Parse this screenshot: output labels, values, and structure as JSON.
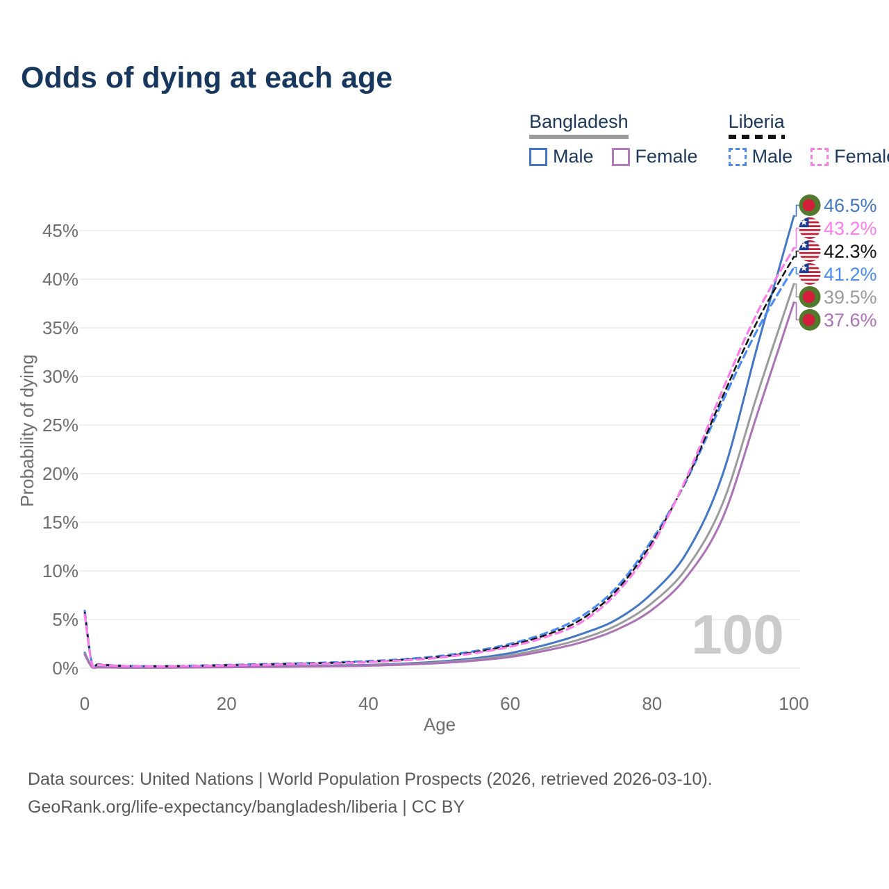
{
  "page": {
    "title": "Odds of dying at each age",
    "watermark": "100",
    "footer": {
      "line1": "Data sources: United Nations | World Population Prospects (2026, retrieved 2026-03-10).",
      "line2": "GeoRank.org/life-expectancy/bangladesh/liberia | CC BY"
    }
  },
  "legend": {
    "groups": [
      {
        "name": "Bangladesh",
        "underline_color": "#9b9b9b",
        "underline_style": "solid",
        "items": [
          {
            "label": "Male",
            "color": "#4377c6",
            "dashed": false
          },
          {
            "label": "Female",
            "color": "#b279bd",
            "dashed": false
          }
        ]
      },
      {
        "name": "Liberia",
        "underline_color": "#141414",
        "underline_style": "dashed",
        "items": [
          {
            "label": "Male",
            "color": "#4a8cf2",
            "dashed": true
          },
          {
            "label": "Female",
            "color": "#fb7de9",
            "dashed": true
          }
        ]
      }
    ]
  },
  "chart_data": {
    "type": "line",
    "title": "Odds of dying at each age",
    "xlabel": "Age",
    "ylabel": "Probability of dying",
    "xlim": [
      0,
      100
    ],
    "ylim": [
      0,
      47
    ],
    "x_ticks": [
      0,
      20,
      40,
      60,
      80,
      100
    ],
    "x_tick_labels": [
      "0",
      "20",
      "40",
      "60",
      "80",
      "100"
    ],
    "y_ticks": [
      0,
      5,
      10,
      15,
      20,
      25,
      30,
      35,
      40,
      45
    ],
    "y_tick_labels": [
      "0%",
      "5%",
      "10%",
      "15%",
      "20%",
      "25%",
      "30%",
      "35%",
      "40%",
      "45%"
    ],
    "grid": "horizontal",
    "legend_position": "top-right",
    "ages": [
      0,
      1,
      2,
      5,
      10,
      15,
      20,
      25,
      30,
      35,
      40,
      45,
      50,
      55,
      60,
      65,
      70,
      75,
      80,
      85,
      90,
      95,
      100
    ],
    "series": [
      {
        "name": "Bangladesh Male",
        "country": "Bangladesh",
        "sex": "Male",
        "color": "#4377c6",
        "dashed": false,
        "stroke_width": 3,
        "end_value": 46.5,
        "end_label": "46.5%",
        "values": [
          1.6,
          0.15,
          0.1,
          0.07,
          0.07,
          0.1,
          0.15,
          0.18,
          0.22,
          0.27,
          0.34,
          0.47,
          0.68,
          1.02,
          1.55,
          2.4,
          3.5,
          5.0,
          7.7,
          12.0,
          20.0,
          33.5,
          46.5
        ]
      },
      {
        "name": "Bangladesh Both sexes",
        "country": "Bangladesh",
        "sex": "Both",
        "color": "#9b9b9b",
        "dashed": false,
        "stroke_width": 3,
        "end_value": 39.5,
        "end_label": "39.5%",
        "values": [
          1.5,
          0.13,
          0.09,
          0.06,
          0.06,
          0.08,
          0.12,
          0.15,
          0.18,
          0.22,
          0.29,
          0.41,
          0.59,
          0.88,
          1.32,
          2.05,
          3.0,
          4.4,
          6.7,
          10.4,
          17.0,
          28.5,
          39.5
        ]
      },
      {
        "name": "Bangladesh Female",
        "country": "Bangladesh",
        "sex": "Female",
        "color": "#ab72b6",
        "dashed": false,
        "stroke_width": 3,
        "end_value": 37.6,
        "end_label": "37.6%",
        "values": [
          1.4,
          0.12,
          0.08,
          0.06,
          0.05,
          0.07,
          0.1,
          0.12,
          0.15,
          0.19,
          0.25,
          0.36,
          0.52,
          0.77,
          1.15,
          1.8,
          2.65,
          3.95,
          6.0,
          9.5,
          15.5,
          26.5,
          37.6
        ]
      },
      {
        "name": "Liberia Male",
        "country": "Liberia",
        "sex": "Male",
        "color": "#4a8cf2",
        "dashed": true,
        "dash": "10 7",
        "stroke_width": 3.2,
        "end_value": 41.2,
        "end_label": "41.2%",
        "values": [
          5.9,
          0.55,
          0.4,
          0.25,
          0.2,
          0.25,
          0.33,
          0.41,
          0.49,
          0.59,
          0.72,
          0.92,
          1.25,
          1.75,
          2.5,
          3.6,
          5.3,
          8.3,
          13.2,
          19.5,
          27.5,
          35.0,
          41.2
        ]
      },
      {
        "name": "Liberia Both sexes",
        "country": "Liberia",
        "sex": "Both",
        "color": "#141414",
        "dashed": true,
        "dash": "8 6",
        "stroke_width": 2.6,
        "end_value": 42.3,
        "end_label": "42.3%",
        "values": [
          5.7,
          0.52,
          0.38,
          0.24,
          0.19,
          0.23,
          0.3,
          0.37,
          0.45,
          0.54,
          0.66,
          0.86,
          1.15,
          1.65,
          2.35,
          3.4,
          5.0,
          8.0,
          12.9,
          19.6,
          28.0,
          35.9,
          42.3
        ]
      },
      {
        "name": "Liberia Female",
        "country": "Liberia",
        "sex": "Female",
        "color": "#fb7de9",
        "dashed": true,
        "dash": "10 7",
        "stroke_width": 3.2,
        "end_value": 43.2,
        "end_label": "43.2%",
        "values": [
          5.5,
          0.5,
          0.36,
          0.23,
          0.18,
          0.21,
          0.28,
          0.34,
          0.41,
          0.48,
          0.62,
          0.8,
          1.08,
          1.55,
          2.2,
          3.2,
          4.7,
          7.7,
          12.6,
          19.8,
          28.7,
          36.8,
          43.2
        ]
      }
    ],
    "flag_colors": {
      "bangladesh_green": "#527a2e",
      "bangladesh_red": "#d41f3c",
      "liberia_red": "#bf2138",
      "liberia_white": "#ffffff",
      "liberia_blue": "#1f3c94"
    },
    "axis_text_color": "#6e6e6e",
    "grid_color": "#ebebeb",
    "watermark_color": "#cbcbcb"
  }
}
